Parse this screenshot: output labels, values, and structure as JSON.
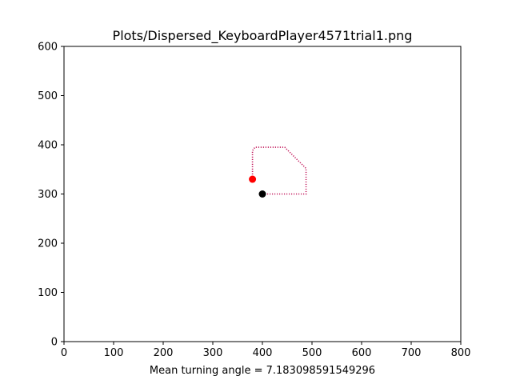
{
  "chart_data": {
    "type": "scatter",
    "title": "Plots/Dispersed_KeyboardPlayer4571trial1.png",
    "xlabel": "Mean turning angle = 7.183098591549296",
    "ylabel": "",
    "xlim": [
      0,
      800
    ],
    "ylim": [
      0,
      600
    ],
    "xticks": [
      0,
      100,
      200,
      300,
      400,
      500,
      600,
      700,
      800
    ],
    "yticks": [
      0,
      100,
      200,
      300,
      400,
      500,
      600
    ],
    "grid": false,
    "trajectory": {
      "style": "dotted",
      "color": "#c2185b",
      "points": [
        [
          400,
          300
        ],
        [
          488,
          300
        ],
        [
          488,
          352
        ],
        [
          445,
          395
        ],
        [
          385,
          395
        ],
        [
          380,
          388
        ],
        [
          380,
          330
        ]
      ]
    },
    "markers": [
      {
        "x": 380,
        "y": 330,
        "color": "#ff0000"
      },
      {
        "x": 400,
        "y": 300,
        "color": "#000000"
      }
    ]
  }
}
